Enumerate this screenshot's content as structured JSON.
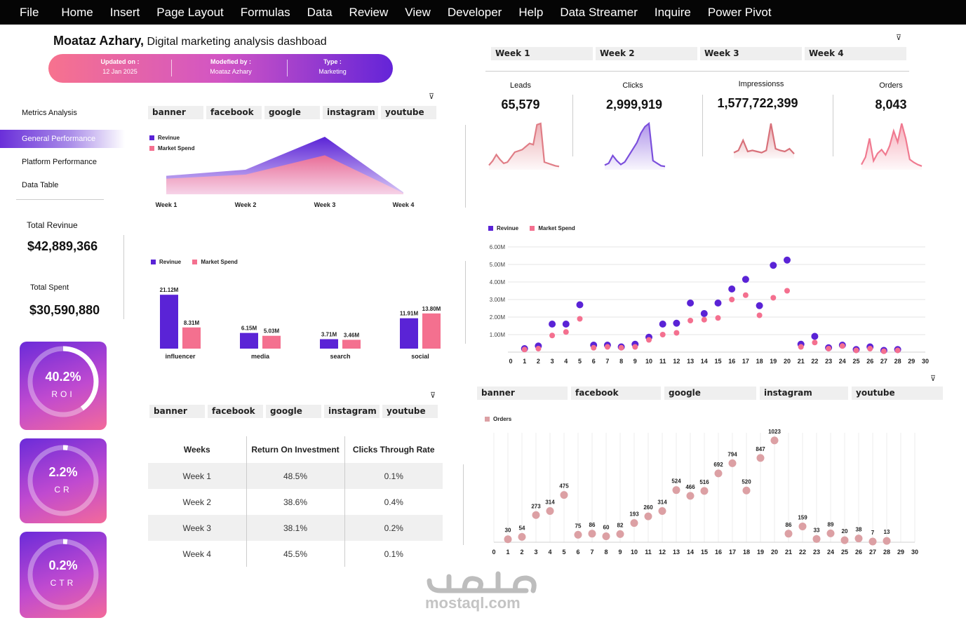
{
  "ribbon": {
    "tabs": [
      "File",
      "Home",
      "Insert",
      "Page Layout",
      "Formulas",
      "Data",
      "Review",
      "View",
      "Developer",
      "Help",
      "Data Streamer",
      "Inquire",
      "Power Pivot"
    ]
  },
  "header": {
    "author": "Moataz Azhary,",
    "subtitle": "Digital marketing analysis dashboad",
    "updated_label": "Updated on :",
    "updated_value": "12 Jan 2025",
    "modified_label": "Modefied by :",
    "modified_value": "Moataz Azhary",
    "type_label": "Type  :",
    "type_value": "Marketing"
  },
  "nav": {
    "items": [
      "Metrics Analysis",
      "General Performance",
      "Platform Performance",
      "Data Table"
    ],
    "active_index": 1
  },
  "totals": {
    "revenue_label": "Total Revinue",
    "revenue_value": "$42,889,366",
    "spent_label": "Total Spent",
    "spent_value": "$30,590,880"
  },
  "cards": [
    {
      "value": "40.2%",
      "label": "ROI",
      "fraction": 0.402
    },
    {
      "value": "2.2%",
      "label": "CR",
      "fraction": 0.022
    },
    {
      "value": "0.2%",
      "label": "CTR",
      "fraction": 0.002
    }
  ],
  "platform_slicer": [
    "banner",
    "facebook",
    "google",
    "instagram",
    "youtube"
  ],
  "week_slicer": [
    "Week 1",
    "Week 2",
    "Week 3",
    "Week 4"
  ],
  "kpis": [
    {
      "label": "Leads",
      "value": "65,579"
    },
    {
      "label": "Clicks",
      "value": "2,999,919"
    },
    {
      "label": "Impressionss",
      "value": "1,577,722,399"
    },
    {
      "label": "Orders",
      "value": "8,043"
    }
  ],
  "legend": {
    "revenue": "Revinue",
    "spend": "Market Spend",
    "orders": "Orders"
  },
  "colors": {
    "revenue": "#5a23d6",
    "spend": "#f4708f",
    "orders": "#dca0a4",
    "card_start": "#6b2bd9",
    "card_end": "#f36a9a"
  },
  "table": {
    "headers": [
      "Weeks",
      "Return On Investment",
      "Clicks Through Rate"
    ],
    "rows": [
      [
        "Week 1",
        "48.5%",
        "0.1%"
      ],
      [
        "Week 2",
        "38.6%",
        "0.4%"
      ],
      [
        "Week 3",
        "38.1%",
        "0.2%"
      ],
      [
        "Week 4",
        "45.5%",
        "0.1%"
      ]
    ]
  },
  "chart_data": [
    {
      "type": "area",
      "title": "",
      "categories": [
        "Week 1",
        "Week 2",
        "Week 3",
        "Week 4"
      ],
      "series": [
        {
          "name": "Revinue",
          "values": [
            4.5,
            6.0,
            14.0,
            0.5
          ]
        },
        {
          "name": "Market Spend",
          "values": [
            3.8,
            4.8,
            9.5,
            0.3
          ]
        }
      ]
    },
    {
      "type": "bar",
      "categories": [
        "influencer",
        "media",
        "search",
        "social"
      ],
      "series": [
        {
          "name": "Revinue",
          "values": [
            21.12,
            6.15,
            3.71,
            11.91
          ],
          "labels": [
            "21.12M",
            "6.15M",
            "3.71M",
            "11.91M"
          ]
        },
        {
          "name": "Market Spend",
          "values": [
            8.31,
            5.03,
            3.46,
            13.8
          ],
          "labels": [
            "8.31M",
            "5.03M",
            "3.46M",
            "13.80M"
          ]
        }
      ],
      "ylim": [
        0,
        22
      ]
    },
    {
      "type": "scatter",
      "x": [
        1,
        2,
        3,
        4,
        5,
        6,
        7,
        8,
        9,
        10,
        11,
        12,
        13,
        14,
        15,
        16,
        17,
        18,
        19,
        20,
        21,
        22,
        23,
        24,
        25,
        26,
        27,
        28
      ],
      "series": [
        {
          "name": "Revinue",
          "values": [
            0.2,
            0.35,
            1.6,
            1.6,
            2.7,
            0.4,
            0.4,
            0.3,
            0.45,
            0.85,
            1.6,
            1.65,
            2.8,
            2.2,
            2.8,
            3.6,
            4.15,
            2.65,
            4.95,
            5.25,
            0.45,
            0.9,
            0.25,
            0.4,
            0.15,
            0.3,
            0.1,
            0.15
          ]
        },
        {
          "name": "Market Spend",
          "values": [
            0.15,
            0.2,
            0.95,
            1.15,
            1.9,
            0.25,
            0.3,
            0.25,
            0.3,
            0.7,
            1.0,
            1.1,
            1.8,
            1.85,
            1.95,
            3.0,
            3.25,
            2.1,
            3.1,
            3.5,
            0.3,
            0.55,
            0.2,
            0.35,
            0.1,
            0.2,
            0.05,
            0.1
          ]
        }
      ],
      "xlim": [
        0,
        30
      ],
      "ylim": [
        0,
        6
      ],
      "yticks": [
        "1.00M",
        "2.00M",
        "3.00M",
        "4.00M",
        "5.00M",
        "6.00M"
      ],
      "xticks": [
        "0",
        "1",
        "2",
        "3",
        "4",
        "5",
        "6",
        "7",
        "8",
        "9",
        "10",
        "11",
        "12",
        "13",
        "14",
        "15",
        "16",
        "17",
        "18",
        "19",
        "20",
        "21",
        "22",
        "23",
        "24",
        "25",
        "26",
        "27",
        "28",
        "29",
        "30"
      ]
    },
    {
      "type": "scatter",
      "x": [
        1,
        2,
        3,
        4,
        5,
        6,
        7,
        8,
        9,
        10,
        11,
        12,
        13,
        14,
        15,
        16,
        17,
        18,
        19,
        20,
        21,
        22,
        23,
        24,
        25,
        26,
        27,
        28
      ],
      "series": [
        {
          "name": "Orders",
          "values": [
            30,
            54,
            273,
            314,
            475,
            75,
            86,
            60,
            82,
            193,
            260,
            314,
            524,
            466,
            516,
            692,
            794,
            520,
            847,
            1023,
            86,
            159,
            33,
            89,
            20,
            38,
            7,
            13
          ]
        }
      ],
      "xlim": [
        0,
        30
      ],
      "ylim": [
        0,
        1100
      ],
      "xticks": [
        "0",
        "1",
        "2",
        "3",
        "4",
        "5",
        "6",
        "7",
        "8",
        "9",
        "10",
        "11",
        "12",
        "13",
        "14",
        "15",
        "16",
        "17",
        "18",
        "19",
        "20",
        "21",
        "22",
        "23",
        "24",
        "25",
        "26",
        "27",
        "28",
        "29",
        "30"
      ]
    },
    {
      "type": "line",
      "title": "Leads",
      "values": [
        5,
        12,
        22,
        14,
        8,
        10,
        18,
        26,
        28,
        30,
        35,
        40,
        38,
        70,
        72,
        10,
        8,
        6,
        4,
        3
      ]
    },
    {
      "type": "line",
      "title": "Clicks",
      "values": [
        5,
        8,
        20,
        12,
        6,
        10,
        20,
        30,
        40,
        55,
        65,
        70,
        12,
        8,
        4,
        3
      ]
    },
    {
      "type": "line",
      "title": "Impressionss",
      "values": [
        8,
        12,
        30,
        10,
        12,
        10,
        8,
        12,
        60,
        15,
        12,
        10,
        15,
        6
      ]
    },
    {
      "type": "line",
      "title": "Orders",
      "values": [
        5,
        15,
        40,
        10,
        20,
        25,
        18,
        30,
        50,
        35,
        60,
        40,
        12,
        8,
        5,
        3
      ]
    }
  ]
}
